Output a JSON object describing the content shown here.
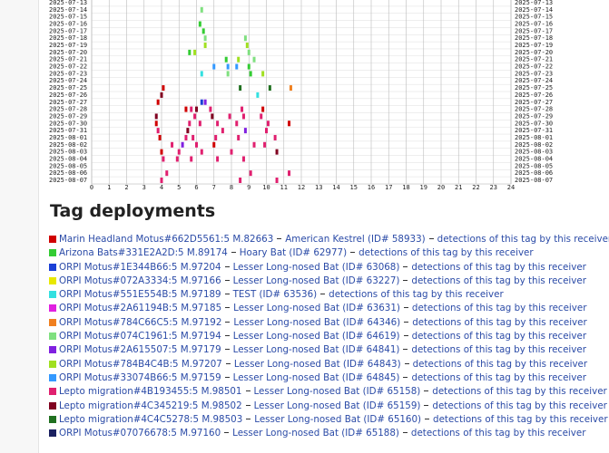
{
  "chart_data": {
    "type": "detection-grid",
    "dates": [
      "2025-07-13",
      "2025-07-14",
      "2025-07-15",
      "2025-07-16",
      "2025-07-17",
      "2025-07-18",
      "2025-07-19",
      "2025-07-20",
      "2025-07-21",
      "2025-07-22",
      "2025-07-23",
      "2025-07-24",
      "2025-07-25",
      "2025-07-26",
      "2025-07-27",
      "2025-07-28",
      "2025-07-29",
      "2025-07-30",
      "2025-07-31",
      "2025-08-01",
      "2025-08-02",
      "2025-08-03",
      "2025-08-04",
      "2025-08-05",
      "2025-08-06",
      "2025-08-07"
    ],
    "xlim": [
      0,
      24
    ],
    "xticks": [
      0,
      1,
      2,
      3,
      4,
      5,
      6,
      7,
      8,
      9,
      10,
      11,
      12,
      13,
      14,
      15,
      16,
      17,
      18,
      19,
      20,
      21,
      22,
      23,
      24
    ],
    "detections": [
      {
        "date": "2025-07-14",
        "hour": 6.3,
        "color": "#80e080"
      },
      {
        "date": "2025-07-16",
        "hour": 6.2,
        "color": "#33cc33"
      },
      {
        "date": "2025-07-17",
        "hour": 6.4,
        "color": "#33cc33"
      },
      {
        "date": "2025-07-18",
        "hour": 6.5,
        "color": "#80e080"
      },
      {
        "date": "2025-07-18",
        "hour": 8.8,
        "color": "#80e080"
      },
      {
        "date": "2025-07-19",
        "hour": 6.5,
        "color": "#a0e020"
      },
      {
        "date": "2025-07-19",
        "hour": 8.9,
        "color": "#a0e020"
      },
      {
        "date": "2025-07-20",
        "hour": 5.6,
        "color": "#33cc33"
      },
      {
        "date": "2025-07-20",
        "hour": 5.9,
        "color": "#a0e020"
      },
      {
        "date": "2025-07-20",
        "hour": 9.0,
        "color": "#80e080"
      },
      {
        "date": "2025-07-21",
        "hour": 7.7,
        "color": "#33cc33"
      },
      {
        "date": "2025-07-21",
        "hour": 8.4,
        "color": "#a0e020"
      },
      {
        "date": "2025-07-21",
        "hour": 9.3,
        "color": "#80e080"
      },
      {
        "date": "2025-07-22",
        "hour": 7.0,
        "color": "#3399ff"
      },
      {
        "date": "2025-07-22",
        "hour": 7.8,
        "color": "#3399ff"
      },
      {
        "date": "2025-07-22",
        "hour": 8.3,
        "color": "#3399ff"
      },
      {
        "date": "2025-07-22",
        "hour": 9.0,
        "color": "#33cc33"
      },
      {
        "date": "2025-07-23",
        "hour": 6.3,
        "color": "#33e0e0"
      },
      {
        "date": "2025-07-23",
        "hour": 7.8,
        "color": "#80e080"
      },
      {
        "date": "2025-07-23",
        "hour": 9.1,
        "color": "#33cc33"
      },
      {
        "date": "2025-07-23",
        "hour": 9.8,
        "color": "#a0e020"
      },
      {
        "date": "2025-07-25",
        "hour": 4.1,
        "color": "#d00000"
      },
      {
        "date": "2025-07-25",
        "hour": 8.5,
        "color": "#207020"
      },
      {
        "date": "2025-07-25",
        "hour": 10.2,
        "color": "#207020"
      },
      {
        "date": "2025-07-25",
        "hour": 11.4,
        "color": "#f08020"
      },
      {
        "date": "2025-07-26",
        "hour": 4.0,
        "color": "#800020"
      },
      {
        "date": "2025-07-26",
        "hour": 9.5,
        "color": "#33e0e0"
      },
      {
        "date": "2025-07-27",
        "hour": 3.8,
        "color": "#d00000"
      },
      {
        "date": "2025-07-27",
        "hour": 6.3,
        "color": "#1a3fd6"
      },
      {
        "date": "2025-07-27",
        "hour": 6.5,
        "color": "#8020e0"
      },
      {
        "date": "2025-07-28",
        "hour": 5.4,
        "color": "#d00000"
      },
      {
        "date": "2025-07-28",
        "hour": 5.7,
        "color": "#e0206f"
      },
      {
        "date": "2025-07-28",
        "hour": 6.0,
        "color": "#800020"
      },
      {
        "date": "2025-07-28",
        "hour": 6.8,
        "color": "#e0206f"
      },
      {
        "date": "2025-07-28",
        "hour": 8.6,
        "color": "#e0206f"
      },
      {
        "date": "2025-07-28",
        "hour": 9.8,
        "color": "#d00000"
      },
      {
        "date": "2025-07-29",
        "hour": 3.7,
        "color": "#800020"
      },
      {
        "date": "2025-07-29",
        "hour": 5.9,
        "color": "#e0206f"
      },
      {
        "date": "2025-07-29",
        "hour": 6.9,
        "color": "#800020"
      },
      {
        "date": "2025-07-29",
        "hour": 7.9,
        "color": "#e0206f"
      },
      {
        "date": "2025-07-29",
        "hour": 8.7,
        "color": "#e0206f"
      },
      {
        "date": "2025-07-29",
        "hour": 9.7,
        "color": "#e0206f"
      },
      {
        "date": "2025-07-30",
        "hour": 3.7,
        "color": "#d00000"
      },
      {
        "date": "2025-07-30",
        "hour": 5.6,
        "color": "#e0206f"
      },
      {
        "date": "2025-07-30",
        "hour": 6.2,
        "color": "#e0206f"
      },
      {
        "date": "2025-07-30",
        "hour": 7.2,
        "color": "#e0206f"
      },
      {
        "date": "2025-07-30",
        "hour": 8.3,
        "color": "#e0206f"
      },
      {
        "date": "2025-07-30",
        "hour": 10.1,
        "color": "#e0206f"
      },
      {
        "date": "2025-07-30",
        "hour": 11.3,
        "color": "#d00000"
      },
      {
        "date": "2025-07-31",
        "hour": 3.8,
        "color": "#e0206f"
      },
      {
        "date": "2025-07-31",
        "hour": 5.5,
        "color": "#800020"
      },
      {
        "date": "2025-07-31",
        "hour": 7.5,
        "color": "#e0206f"
      },
      {
        "date": "2025-07-31",
        "hour": 8.8,
        "color": "#8020e0"
      },
      {
        "date": "2025-07-31",
        "hour": 10.0,
        "color": "#e0206f"
      },
      {
        "date": "2025-08-01",
        "hour": 3.9,
        "color": "#d00000"
      },
      {
        "date": "2025-08-01",
        "hour": 5.4,
        "color": "#e0206f"
      },
      {
        "date": "2025-08-01",
        "hour": 5.8,
        "color": "#e0206f"
      },
      {
        "date": "2025-08-01",
        "hour": 7.1,
        "color": "#e0206f"
      },
      {
        "date": "2025-08-01",
        "hour": 8.4,
        "color": "#e0206f"
      },
      {
        "date": "2025-08-01",
        "hour": 10.5,
        "color": "#e0206f"
      },
      {
        "date": "2025-08-02",
        "hour": 4.6,
        "color": "#e0206f"
      },
      {
        "date": "2025-08-02",
        "hour": 5.2,
        "color": "#8020e0"
      },
      {
        "date": "2025-08-02",
        "hour": 6.0,
        "color": "#e0206f"
      },
      {
        "date": "2025-08-02",
        "hour": 7.0,
        "color": "#d00000"
      },
      {
        "date": "2025-08-02",
        "hour": 9.3,
        "color": "#e0206f"
      },
      {
        "date": "2025-08-02",
        "hour": 9.9,
        "color": "#e0206f"
      },
      {
        "date": "2025-08-03",
        "hour": 4.0,
        "color": "#d00000"
      },
      {
        "date": "2025-08-03",
        "hour": 5.0,
        "color": "#e0206f"
      },
      {
        "date": "2025-08-03",
        "hour": 6.3,
        "color": "#e0206f"
      },
      {
        "date": "2025-08-03",
        "hour": 8.0,
        "color": "#e0206f"
      },
      {
        "date": "2025-08-03",
        "hour": 10.6,
        "color": "#800020"
      },
      {
        "date": "2025-08-04",
        "hour": 4.1,
        "color": "#e0206f"
      },
      {
        "date": "2025-08-04",
        "hour": 4.9,
        "color": "#e0206f"
      },
      {
        "date": "2025-08-04",
        "hour": 5.7,
        "color": "#e0206f"
      },
      {
        "date": "2025-08-04",
        "hour": 7.2,
        "color": "#e0206f"
      },
      {
        "date": "2025-08-04",
        "hour": 8.7,
        "color": "#e0206f"
      },
      {
        "date": "2025-08-06",
        "hour": 4.3,
        "color": "#e0206f"
      },
      {
        "date": "2025-08-06",
        "hour": 9.1,
        "color": "#e0206f"
      },
      {
        "date": "2025-08-06",
        "hour": 11.3,
        "color": "#e0206f"
      },
      {
        "date": "2025-08-07",
        "hour": 4.0,
        "color": "#e0206f"
      },
      {
        "date": "2025-08-07",
        "hour": 8.5,
        "color": "#e0206f"
      },
      {
        "date": "2025-08-07",
        "hour": 10.6,
        "color": "#e0206f"
      }
    ]
  },
  "section": {
    "title": "Tag deployments",
    "deployments": [
      {
        "color": "#d00000",
        "tag": "Marin Headland Motus#662D5561:5 M.82663",
        "receiver": "American Kestrel (ID# 58933)",
        "link": "detections of this tag by this receiver"
      },
      {
        "color": "#33cc33",
        "tag": "Arizona Bats#331E2A2D:5 M.89174",
        "receiver": "Hoary Bat (ID# 62977)",
        "link": "detections of this tag by this receiver"
      },
      {
        "color": "#1a3fd6",
        "tag": "ORPI Motus#1E344B66:5 M.97204",
        "receiver": "Lesser Long-nosed Bat (ID# 63068)",
        "link": "detections of this tag by this receiver"
      },
      {
        "color": "#e8e800",
        "tag": "ORPI Motus#072A3334:5 M.97166",
        "receiver": "Lesser Long-nosed Bat (ID# 63227)",
        "link": "detections of this tag by this receiver"
      },
      {
        "color": "#33e0e0",
        "tag": "ORPI Motus#551E554B:5 M.97189",
        "receiver": "TEST (ID# 63536)",
        "link": "detections of this tag by this receiver"
      },
      {
        "color": "#e020e0",
        "tag": "ORPI Motus#2A61194B:5 M.97185",
        "receiver": "Lesser Long-nosed Bat (ID# 63631)",
        "link": "detections of this tag by this receiver"
      },
      {
        "color": "#f08020",
        "tag": "ORPI Motus#784C66C5:5 M.97192",
        "receiver": "Lesser Long-nosed Bat (ID# 64346)",
        "link": "detections of this tag by this receiver"
      },
      {
        "color": "#80e080",
        "tag": "ORPI Motus#074C1961:5 M.97194",
        "receiver": "Lesser Long-nosed Bat (ID# 64619)",
        "link": "detections of this tag by this receiver"
      },
      {
        "color": "#8020e0",
        "tag": "ORPI Motus#2A615507:5 M.97179",
        "receiver": "Lesser Long-nosed Bat (ID# 64841)",
        "link": "detections of this tag by this receiver"
      },
      {
        "color": "#a0e020",
        "tag": "ORPI Motus#784B4C4B:5 M.97207",
        "receiver": "Lesser Long-nosed Bat (ID# 64843)",
        "link": "detections of this tag by this receiver"
      },
      {
        "color": "#3399ff",
        "tag": "ORPI Motus#33074B66:5 M.97159",
        "receiver": "Lesser Long-nosed Bat (ID# 64845)",
        "link": "detections of this tag by this receiver"
      },
      {
        "color": "#e0206f",
        "tag": "Lepto migration#4B193455:5 M.98501",
        "receiver": "Lesser Long-nosed Bat (ID# 65158)",
        "link": "detections of this tag by this receiver"
      },
      {
        "color": "#800020",
        "tag": "Lepto migration#4C345219:5 M.98502",
        "receiver": "Lesser Long-nosed Bat (ID# 65159)",
        "link": "detections of this tag by this receiver"
      },
      {
        "color": "#207020",
        "tag": "Lepto migration#4C4C5278:5 M.98503",
        "receiver": "Lesser Long-nosed Bat (ID# 65160)",
        "link": "detections of this tag by this receiver"
      },
      {
        "color": "#1a2060",
        "tag": "ORPI Motus#07076678:5 M.97160",
        "receiver": "Lesser Long-nosed Bat (ID# 65188)",
        "link": "detections of this tag by this receiver"
      }
    ]
  }
}
